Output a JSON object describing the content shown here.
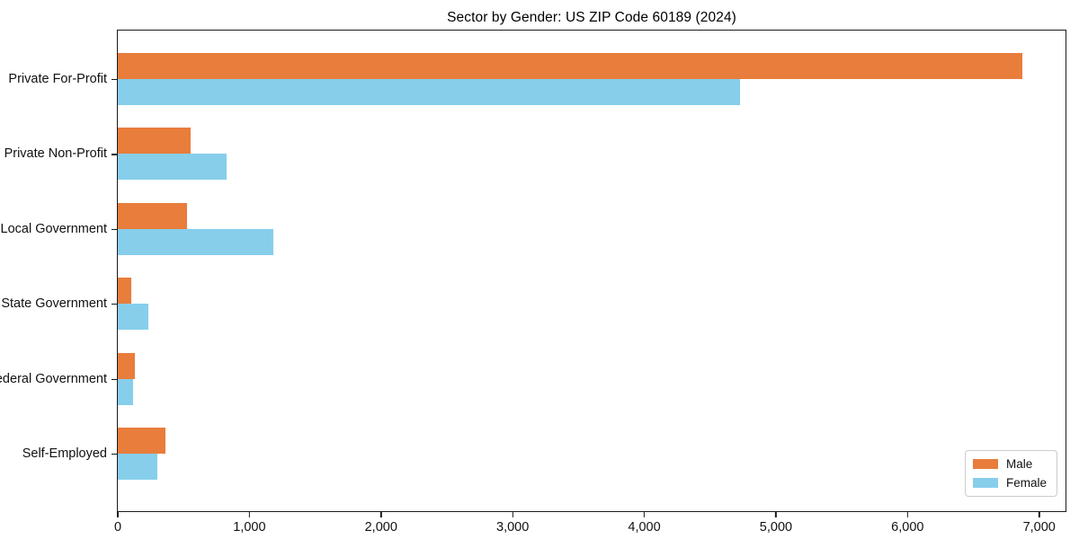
{
  "title": "Sector by Gender: US ZIP Code 60189 (2024)",
  "chart_data": {
    "type": "bar",
    "orientation": "horizontal",
    "title": "Sector by Gender: US ZIP Code 60189 (2024)",
    "categories": [
      "Private For-Profit",
      "Private Non-Profit",
      "Local Government",
      "State Government",
      "Federal Government",
      "Self-Employed"
    ],
    "series": [
      {
        "name": "Male",
        "color": "#E87D3C",
        "values": [
          6870,
          550,
          525,
          105,
          130,
          360
        ]
      },
      {
        "name": "Female",
        "color": "#87CEEB",
        "values": [
          4730,
          825,
          1185,
          230,
          115,
          300
        ]
      }
    ],
    "xlabel": "",
    "ylabel": "",
    "xlim": [
      0,
      7200
    ],
    "xticks": [
      0,
      1000,
      2000,
      3000,
      4000,
      5000,
      6000,
      7000
    ],
    "xtick_labels": [
      "0",
      "1,000",
      "2,000",
      "3,000",
      "4,000",
      "5,000",
      "6,000",
      "7,000"
    ],
    "legend": {
      "position": "lower right",
      "entries": [
        "Male",
        "Female"
      ]
    },
    "grid": false,
    "background": "#ffffff",
    "spine_color": "#1a1a1a"
  }
}
